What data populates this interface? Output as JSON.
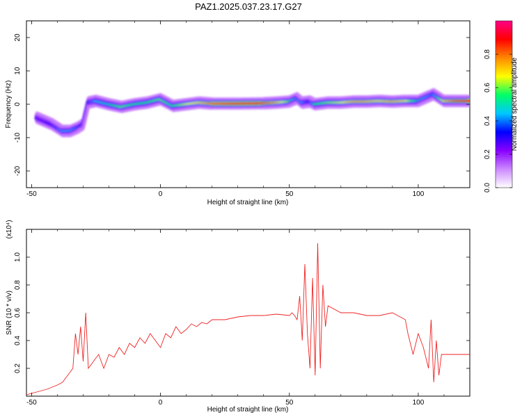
{
  "title": "PAZ1.2025.037.23.17.G27",
  "colorbar": {
    "label": "Normalized spectral amplitude",
    "ticks": [
      "0.0",
      "0.2",
      "0.4",
      "0.6",
      "0.8"
    ],
    "tick_values": [
      0,
      0.2,
      0.4,
      0.6,
      0.8
    ],
    "colors": [
      "#ffffff",
      "#cc88ff",
      "#8800ff",
      "#0000ff",
      "#00c8ff",
      "#00ff66",
      "#ffff00",
      "#ff8800",
      "#ff0000",
      "#ff0088"
    ]
  },
  "chart_data": [
    {
      "type": "heatmap",
      "xlabel": "Height of straight line (km)",
      "ylabel": "Frequency (Hz)",
      "xlim": [
        -52,
        120
      ],
      "ylim": [
        -25,
        25
      ],
      "x_ticks": [
        -50,
        0,
        50,
        100
      ],
      "x_tick_labels": [
        "-50",
        "0",
        "50",
        "100"
      ],
      "y_ticks": [
        -20,
        -10,
        0,
        10,
        20
      ],
      "y_tick_labels": [
        "-20",
        "-10",
        "0",
        "10",
        "20"
      ],
      "ridge": {
        "x": [
          -48,
          -45,
          -42,
          -40,
          -38,
          -35,
          -32,
          -30,
          -28,
          -25,
          -20,
          -15,
          -10,
          -5,
          0,
          5,
          10,
          15,
          20,
          30,
          40,
          45,
          50,
          53,
          55,
          58,
          60,
          65,
          70,
          75,
          80,
          85,
          90,
          95,
          100,
          103,
          106,
          110,
          115,
          120
        ],
        "frequency": [
          -4,
          -5,
          -6,
          -7,
          -8,
          -8,
          -7,
          -6,
          0.5,
          1,
          0,
          -0.8,
          0,
          0.5,
          1.5,
          -0.5,
          0,
          0.5,
          0.2,
          0.2,
          0.3,
          0.5,
          0.8,
          1.8,
          0.5,
          0.8,
          0,
          0.5,
          0.5,
          0.8,
          0.8,
          1,
          0.8,
          1,
          1,
          2,
          3,
          1,
          1,
          1
        ],
        "amplitude": [
          0.3,
          0.3,
          0.35,
          0.4,
          0.45,
          0.45,
          0.4,
          0.35,
          0.35,
          0.45,
          0.5,
          0.6,
          0.55,
          0.55,
          0.6,
          0.55,
          0.65,
          0.7,
          0.8,
          0.85,
          0.85,
          0.75,
          0.6,
          0.45,
          0.45,
          0.35,
          0.55,
          0.6,
          0.65,
          0.75,
          0.75,
          0.7,
          0.75,
          0.7,
          0.5,
          0.45,
          0.4,
          0.7,
          0.85,
          0.9
        ]
      }
    },
    {
      "type": "line",
      "xlabel": "Height of straight line (km)",
      "ylabel": "SNR (10 * v/v)",
      "y_exponent_label": "(x10⁴)",
      "xlim": [
        -52,
        120
      ],
      "ylim": [
        0,
        1.2
      ],
      "x_ticks": [
        -50,
        0,
        50,
        100
      ],
      "x_tick_labels": [
        "-50",
        "0",
        "50",
        "100"
      ],
      "y_ticks": [
        0.2,
        0.4,
        0.6,
        0.8,
        1.0
      ],
      "y_tick_labels": [
        "0.2",
        "0.4",
        "0.6",
        "0.8",
        "1.0"
      ],
      "series": [
        {
          "color": "#ee2222",
          "x": [
            -52,
            -48,
            -44,
            -40,
            -38,
            -36,
            -34,
            -33,
            -32,
            -31,
            -30,
            -29,
            -28,
            -26,
            -24,
            -22,
            -20,
            -18,
            -16,
            -14,
            -12,
            -10,
            -8,
            -6,
            -4,
            -2,
            0,
            2,
            4,
            6,
            8,
            10,
            12,
            14,
            16,
            18,
            20,
            25,
            30,
            35,
            40,
            45,
            50,
            51,
            52,
            53,
            54,
            55,
            56,
            57,
            58,
            59,
            60,
            61,
            62,
            63,
            64,
            65,
            70,
            75,
            80,
            85,
            90,
            95,
            96,
            98,
            100,
            102,
            104,
            105,
            106,
            107,
            108,
            109,
            110,
            112,
            115,
            120
          ],
          "y": [
            0.01,
            0.03,
            0.05,
            0.08,
            0.1,
            0.15,
            0.2,
            0.45,
            0.3,
            0.5,
            0.25,
            0.6,
            0.2,
            0.25,
            0.3,
            0.2,
            0.3,
            0.28,
            0.35,
            0.3,
            0.38,
            0.35,
            0.42,
            0.38,
            0.45,
            0.4,
            0.35,
            0.45,
            0.42,
            0.5,
            0.45,
            0.48,
            0.52,
            0.5,
            0.53,
            0.52,
            0.55,
            0.55,
            0.57,
            0.58,
            0.58,
            0.59,
            0.58,
            0.6,
            0.58,
            0.55,
            0.72,
            0.4,
            0.95,
            0.45,
            0.2,
            0.85,
            0.15,
            1.1,
            0.2,
            0.8,
            0.5,
            0.65,
            0.6,
            0.6,
            0.58,
            0.58,
            0.6,
            0.55,
            0.45,
            0.3,
            0.45,
            0.35,
            0.2,
            0.55,
            0.1,
            0.4,
            0.15,
            0.3,
            0.3,
            0.3,
            0.3,
            0.3
          ]
        }
      ]
    }
  ]
}
